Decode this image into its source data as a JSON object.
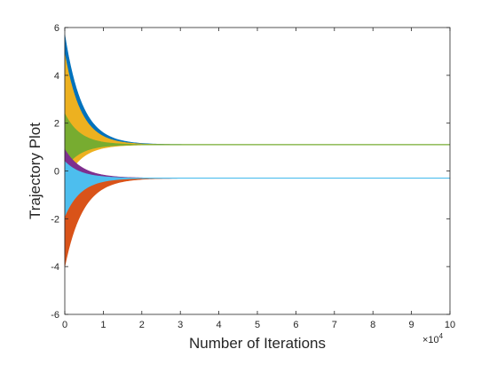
{
  "chart_data": {
    "type": "area",
    "title": "",
    "xlabel": "Number of Iterations",
    "ylabel": "Trajectory Plot",
    "x_exponent_label": "×10",
    "x_exponent_power": "4",
    "xlim": [
      0,
      10
    ],
    "ylim": [
      -6,
      6
    ],
    "x_ticks": [
      0,
      1,
      2,
      3,
      4,
      5,
      6,
      7,
      8,
      9,
      10
    ],
    "x_tick_labels": [
      "0",
      "1",
      "2",
      "3",
      "4",
      "5",
      "6",
      "7",
      "8",
      "9",
      "10"
    ],
    "y_ticks": [
      -6,
      -4,
      -2,
      0,
      2,
      4,
      6
    ],
    "y_tick_labels": [
      "-6",
      "-4",
      "-2",
      "0",
      "2",
      "4",
      "6"
    ],
    "grid": false,
    "box": true,
    "converge_values": [
      1.1,
      -0.3
    ],
    "series": [
      {
        "color": "#0072BD",
        "center": 1.1,
        "start_upper": 5.7,
        "start_lower": 1.1,
        "decay": 0.45
      },
      {
        "color": "#EDB120",
        "center": 1.1,
        "start_upper": 4.9,
        "start_lower": -0.5,
        "decay": 0.42
      },
      {
        "color": "#77AC30",
        "center": 1.1,
        "start_upper": 2.4,
        "start_lower": 0.1,
        "decay": 0.4
      },
      {
        "color": "#7E2F8E",
        "center": -0.3,
        "start_upper": 0.9,
        "start_lower": -3.5,
        "decay": 0.45
      },
      {
        "color": "#D95319",
        "center": -0.3,
        "start_upper": -0.3,
        "start_lower": -4.0,
        "decay": 0.47
      },
      {
        "color": "#4DBEEE",
        "center": -0.3,
        "start_upper": 0.4,
        "start_lower": -1.9,
        "decay": 0.42
      }
    ]
  }
}
